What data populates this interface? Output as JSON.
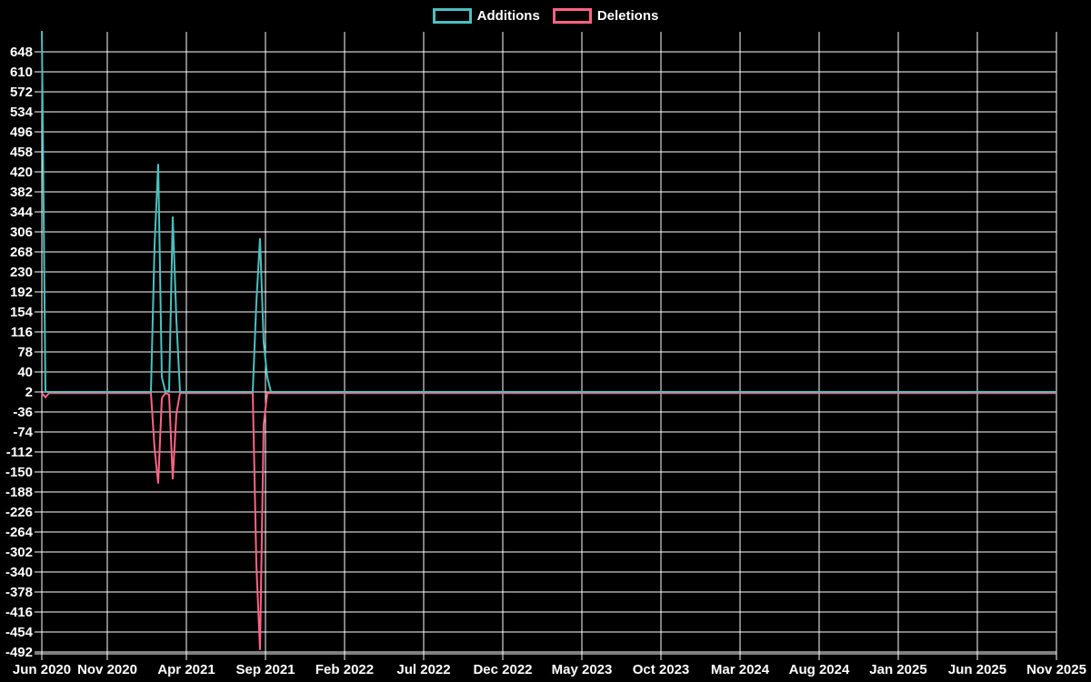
{
  "legend": {
    "additions_label": "Additions",
    "deletions_label": "Deletions"
  },
  "colors": {
    "additions": "#4bc0c0",
    "deletions": "#ff6384",
    "grid": "#ffffff",
    "text": "#ffffff",
    "background": "#000000"
  },
  "chart_data": {
    "type": "line",
    "title": "",
    "legend_position": "top",
    "grid": true,
    "x_tick_labels": [
      "Jun 2020",
      "Nov 2020",
      "Apr 2021",
      "Sep 2021",
      "Feb 2022",
      "Jul 2022",
      "Dec 2022",
      "May 2023",
      "Oct 2023",
      "Mar 2024",
      "Aug 2024",
      "Jan 2025",
      "Jun 2025",
      "Nov 2025"
    ],
    "y_tick_labels": [
      "648",
      "610",
      "572",
      "534",
      "496",
      "458",
      "420",
      "382",
      "344",
      "306",
      "268",
      "230",
      "192",
      "154",
      "116",
      "78",
      "40",
      "2",
      "-36",
      "-74",
      "-112",
      "-150",
      "-188",
      "-226",
      "-264",
      "-302",
      "-340",
      "-378",
      "-416",
      "-454",
      "-492"
    ],
    "y_tick_step": 38,
    "y_axis_clip_top_value": 686,
    "y_axis_bottom_value": -492,
    "x_unit": "weeks",
    "weeks_total": 280,
    "series": [
      {
        "name": "Additions",
        "color": "#4bc0c0",
        "baseline_value": 2,
        "spike_points": [
          {
            "week": 0,
            "value": 690
          },
          {
            "week": 31,
            "value": 280
          },
          {
            "week": 32,
            "value": 435
          },
          {
            "week": 33,
            "value": 30
          },
          {
            "week": 35,
            "value": 5
          },
          {
            "week": 36,
            "value": 335
          },
          {
            "week": 37,
            "value": 140
          },
          {
            "week": 59,
            "value": 173
          },
          {
            "week": 60,
            "value": 294
          },
          {
            "week": 61,
            "value": 96
          },
          {
            "week": 62,
            "value": 30
          }
        ]
      },
      {
        "name": "Deletions",
        "color": "#ff6384",
        "baseline_value": 0,
        "spike_points": [
          {
            "week": 1,
            "value": -8
          },
          {
            "week": 31,
            "value": -105
          },
          {
            "week": 32,
            "value": -172
          },
          {
            "week": 33,
            "value": -10
          },
          {
            "week": 35,
            "value": -3
          },
          {
            "week": 36,
            "value": -164
          },
          {
            "week": 37,
            "value": -40
          },
          {
            "week": 59,
            "value": -327
          },
          {
            "week": 60,
            "value": -488
          },
          {
            "week": 61,
            "value": -60
          }
        ]
      }
    ]
  }
}
